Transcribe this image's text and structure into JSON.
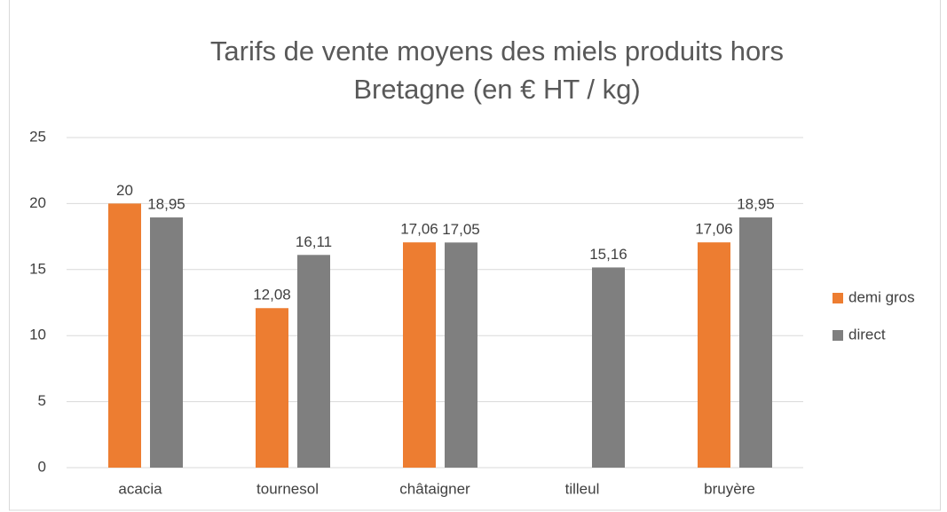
{
  "chart_data": {
    "type": "bar",
    "title": [
      "Tarifs de vente moyens des miels produits hors",
      "Bretagne (en € HT / kg)"
    ],
    "categories": [
      "acacia",
      "tournesol",
      "châtaigner",
      "tilleul",
      "bruyère"
    ],
    "series": [
      {
        "name": "demi gros",
        "color": "#ed7d31",
        "values": [
          20,
          12.08,
          17.06,
          null,
          17.06
        ],
        "value_labels": [
          "20",
          "12,08",
          "17,06",
          null,
          "17,06"
        ]
      },
      {
        "name": "direct",
        "color": "#7f7f7f",
        "values": [
          18.95,
          16.11,
          17.05,
          15.16,
          18.95
        ],
        "value_labels": [
          "18,95",
          "16,11",
          "17,05",
          "15,16",
          "18,95"
        ]
      }
    ],
    "ylim": [
      0,
      25
    ],
    "yticks": [
      0,
      5,
      10,
      15,
      20,
      25
    ],
    "grid": true,
    "legend": "right"
  }
}
